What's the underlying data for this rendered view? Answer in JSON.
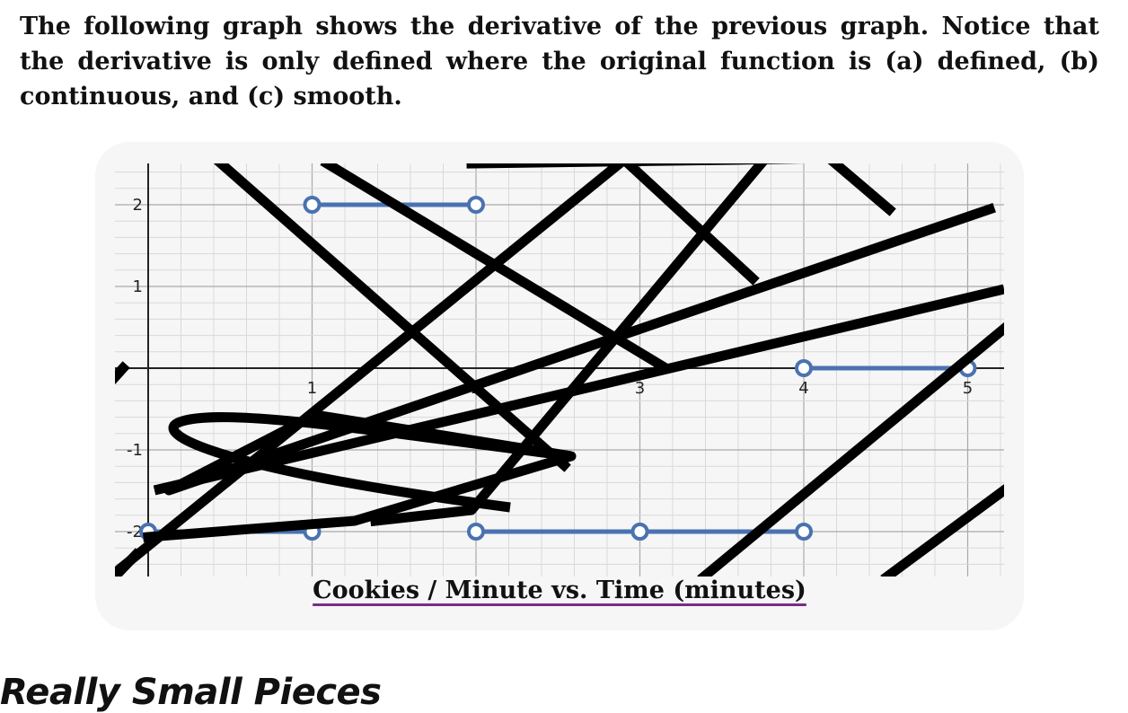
{
  "intro": {
    "text": "The following graph shows the derivative of the previous graph. Notice that the derivative is only defined where the original function is (a) defined, (b) continuous, and (c) smooth."
  },
  "figure": {
    "caption": "Cookies / Minute vs. Time (minutes)"
  },
  "chart_data": {
    "type": "line",
    "title": "",
    "xlabel": "Cookies / Minute vs. Time (minutes)",
    "ylabel": "",
    "xlim": [
      0,
      5.2
    ],
    "ylim": [
      -2.5,
      2.5
    ],
    "x_ticks": [
      "1",
      "2",
      "3",
      "4",
      "5"
    ],
    "y_ticks": [
      "2",
      "1",
      "-1",
      "-2"
    ],
    "grid": true,
    "segments": [
      {
        "x": [
          0,
          1
        ],
        "y": [
          -2,
          -2
        ],
        "endpoints": "open"
      },
      {
        "x": [
          1,
          2
        ],
        "y": [
          2,
          2
        ],
        "endpoints": "open"
      },
      {
        "x": [
          2,
          3
        ],
        "y": [
          -2,
          -2
        ],
        "endpoints": "open"
      },
      {
        "x": [
          3,
          4
        ],
        "y": [
          -2,
          -2
        ],
        "endpoints": "open"
      },
      {
        "x": [
          4,
          5
        ],
        "y": [
          0,
          0
        ],
        "endpoints": "open"
      }
    ],
    "colors": {
      "segment": "#4a72b0",
      "scribble": "#000000"
    }
  },
  "next_section": {
    "heading": "Really Small Pieces"
  }
}
